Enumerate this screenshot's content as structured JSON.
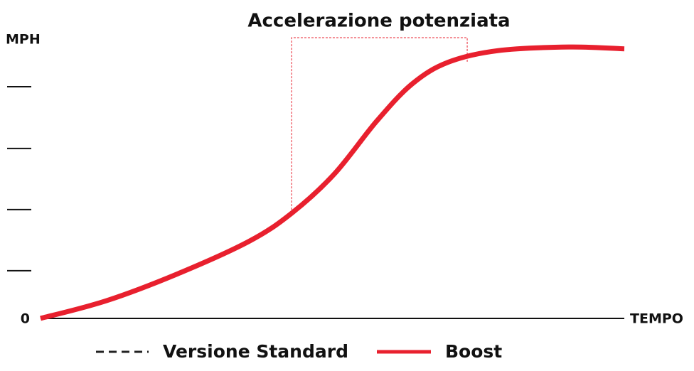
{
  "chart_data": {
    "type": "line",
    "title": "Accelerazione potenziata",
    "y_label": "MPH",
    "x_label": "TEMPO",
    "x": [
      0,
      1.13,
      2.35,
      3.57,
      4.3,
      5.03,
      5.76,
      6.37,
      6.98,
      7.83,
      9.05,
      10
    ],
    "series": [
      {
        "name": "Versione Standard",
        "color": "#222222",
        "dashed": true,
        "values": [
          null,
          null,
          null,
          null,
          null,
          null,
          null,
          null,
          null,
          null,
          null,
          null
        ]
      },
      {
        "name": "Boost",
        "color": "#e8202e",
        "values": [
          0,
          0.29,
          0.73,
          1.26,
          1.72,
          2.36,
          3.23,
          3.84,
          4.19,
          4.38,
          4.44,
          4.41
        ]
      }
    ],
    "xlim": [
      0,
      10
    ],
    "ylim": [
      0,
      4.5
    ],
    "yticks": [
      0
    ],
    "minor_yticks": [
      0.78,
      1.78,
      2.78,
      3.79
    ]
  }
}
